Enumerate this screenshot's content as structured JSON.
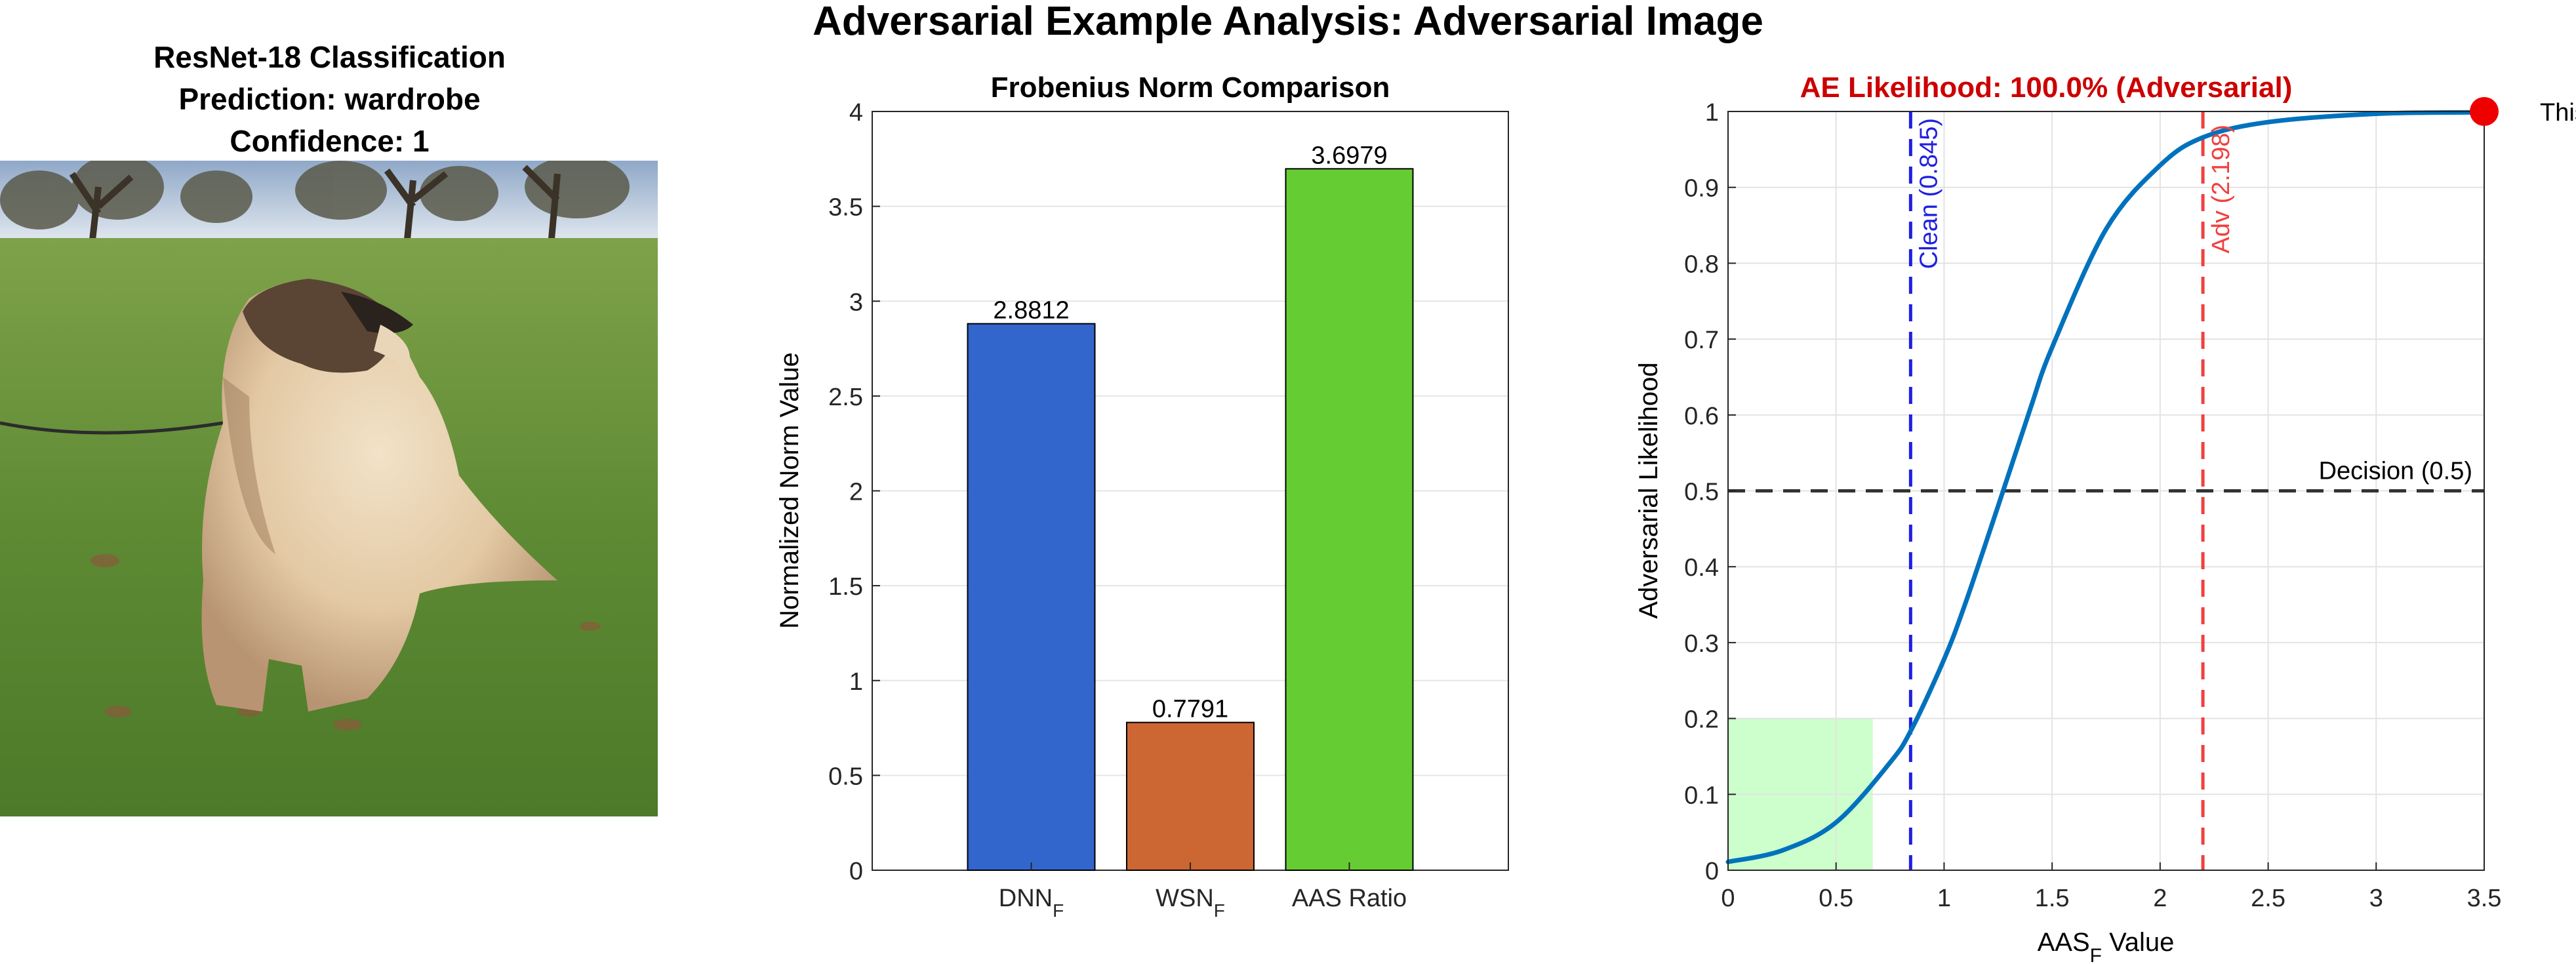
{
  "figure": {
    "title": "Adversarial Example Analysis: Adversarial Image"
  },
  "image_panel": {
    "title_line1": "ResNet-18 Classification",
    "title_line2": "Prediction: wardrobe",
    "title_line3": "Confidence: 1"
  },
  "colors": {
    "dnn_bar": "#3366cc",
    "wsn_bar": "#cc6633",
    "aas_bar": "#66cc33",
    "curve": "#0072bd",
    "clean_line": "#2020e0",
    "adv_line": "#f04040",
    "adversarial_title": "#cc0000",
    "marker": "#ee0000",
    "clean_region": "#ccffcc"
  },
  "chart_data": [
    {
      "type": "bar",
      "title": "Frobenius Norm Comparison",
      "xlabel": "",
      "ylabel": "Normalized Norm Value",
      "categories": [
        {
          "main": "DNN",
          "sub": "F"
        },
        {
          "main": "WSN",
          "sub": "F"
        },
        {
          "main": "AAS Ratio",
          "sub": ""
        }
      ],
      "values": [
        2.8812,
        0.7791,
        3.6979
      ],
      "value_labels": [
        "2.8812",
        "0.7791",
        "3.6979"
      ],
      "ylim": [
        0,
        4
      ],
      "yticks": [
        0,
        0.5,
        1,
        1.5,
        2,
        2.5,
        3,
        3.5,
        4
      ],
      "ytick_labels": [
        "0",
        "0.5",
        "1",
        "1.5",
        "2",
        "2.5",
        "3",
        "3.5",
        "4"
      ],
      "grid": true
    },
    {
      "type": "line",
      "title": "AE Likelihood: 100.0% (Adversarial)",
      "xlabel": {
        "main": "AAS",
        "sub": "F",
        "rest": " Value"
      },
      "ylabel": "Adversarial Likelihood",
      "xlim": [
        0,
        3.5
      ],
      "ylim": [
        0,
        1
      ],
      "xticks": [
        0,
        0.5,
        1,
        1.5,
        2,
        2.5,
        3,
        3.5
      ],
      "xtick_labels": [
        "0",
        "0.5",
        "1",
        "1.5",
        "2",
        "2.5",
        "3",
        "3.5"
      ],
      "yticks": [
        0,
        0.1,
        0.2,
        0.3,
        0.4,
        0.5,
        0.6,
        0.7,
        0.8,
        0.9,
        1
      ],
      "ytick_labels": [
        "0",
        "0.1",
        "0.2",
        "0.3",
        "0.4",
        "0.5",
        "0.6",
        "0.7",
        "0.8",
        "0.9",
        "1"
      ],
      "grid": true,
      "series": [
        {
          "x": [
            0,
            0.25,
            0.5,
            0.75,
            0.85,
            1.0,
            1.1,
            1.25,
            1.4,
            1.5,
            1.75,
            2.0,
            2.2,
            2.5,
            3.0,
            3.5
          ],
          "y": [
            0.011,
            0.026,
            0.063,
            0.142,
            0.186,
            0.278,
            0.353,
            0.48,
            0.609,
            0.689,
            0.845,
            0.929,
            0.966,
            0.986,
            0.997,
            0.999
          ]
        }
      ],
      "clean_line": {
        "x": 0.845,
        "label": "Clean (0.845)"
      },
      "adv_line": {
        "x": 2.198,
        "label": "Adv (2.198)"
      },
      "decision_line": {
        "y": 0.5,
        "label": "Decision (0.5)"
      },
      "clean_region": {
        "x": [
          0,
          0.67
        ],
        "y": [
          0,
          0.2
        ]
      },
      "marker": {
        "x": 3.5,
        "y": 1.0,
        "label": "This Image"
      }
    }
  ]
}
